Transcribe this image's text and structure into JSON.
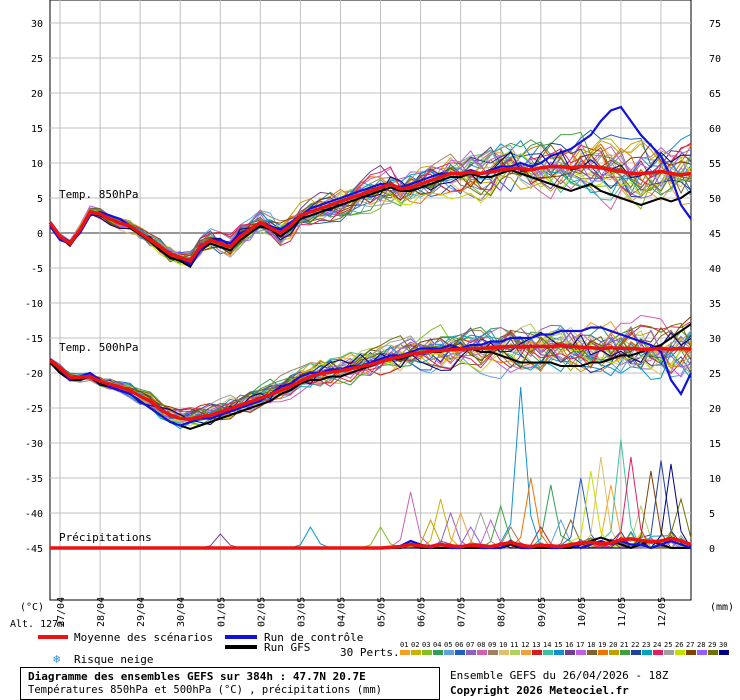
{
  "chart_data": {
    "type": "line",
    "left_axis_unit": "(°C)",
    "right_axis_unit": "(mm)",
    "altitude_label": "Alt. 127m",
    "left_ticks": [
      30,
      25,
      20,
      15,
      10,
      5,
      0,
      -5,
      -10,
      -15,
      -20,
      -25,
      -30,
      -35,
      -40,
      -45
    ],
    "right_ticks": [
      75,
      70,
      65,
      60,
      55,
      50,
      45,
      40,
      35,
      30,
      25,
      20,
      15,
      10,
      5,
      0
    ],
    "x_tick_labels": [
      "27/04",
      "28/04",
      "29/04",
      "30/04",
      "01/05",
      "02/05",
      "03/05",
      "04/05",
      "05/05",
      "06/05",
      "07/05",
      "08/05",
      "09/05",
      "10/05",
      "11/05",
      "12/05"
    ],
    "panel_labels": {
      "t850": "Temp. 850hPa",
      "t500": "Temp. 500hPa",
      "precip": "Précipitations"
    },
    "x_hours_start": 0,
    "x_hours_end": 384,
    "x_hours_step": 6,
    "t850": {
      "mean": [
        1.5,
        -0.5,
        -1.5,
        0.5,
        3,
        2.7,
        2,
        1.4,
        1,
        0,
        -1,
        -2,
        -3,
        -3.5,
        -4,
        -2,
        -1,
        -1.5,
        -2,
        -0.5,
        0.5,
        1.5,
        0.7,
        0,
        1,
        2.5,
        3,
        3.5,
        4,
        4.5,
        5,
        5.5,
        6,
        6.5,
        7,
        6.3,
        6.5,
        7,
        7.5,
        8,
        8.5,
        8.5,
        8.7,
        8.5,
        8.7,
        9,
        9.2,
        9.2,
        9,
        9.3,
        9.5,
        9.5,
        9.3,
        9.5,
        9.5,
        9.3,
        9,
        8.8,
        8.5,
        8.5,
        8.6,
        8.8,
        8.5,
        8.3,
        8.5
      ],
      "control": [
        1,
        -1,
        -1.5,
        0,
        2.5,
        3,
        2.5,
        2,
        1,
        0,
        -1,
        -2,
        -3,
        -3.5,
        -4.5,
        -2.5,
        -1,
        -1,
        -1.5,
        0,
        0.5,
        1.5,
        1,
        0.5,
        1.5,
        2.5,
        3.5,
        4,
        4.5,
        5,
        5.5,
        6,
        6.5,
        7,
        7,
        6.5,
        7,
        7.5,
        8,
        8.5,
        8.5,
        8.5,
        9,
        8.5,
        9,
        9.5,
        9.5,
        10,
        9.5,
        10,
        11,
        11.5,
        12,
        13,
        14,
        16,
        17.5,
        18,
        16,
        14,
        12.5,
        11,
        8,
        4,
        2
      ],
      "gfs": [
        1.2,
        -0.5,
        -1.8,
        0.3,
        2.8,
        2.5,
        2,
        1.5,
        0.8,
        -0.2,
        -1.2,
        -2.5,
        -3.5,
        -4,
        -4.8,
        -2.5,
        -1.5,
        -2,
        -2.5,
        -1,
        0,
        1,
        0.5,
        -0.5,
        0.5,
        2,
        2.5,
        3,
        3.5,
        4,
        4.5,
        5,
        5.5,
        6,
        6.5,
        6,
        6,
        6.5,
        7,
        7.5,
        8,
        8,
        8.5,
        8,
        8,
        8.5,
        9,
        8.5,
        8,
        7.5,
        7,
        6.5,
        6,
        6.5,
        7,
        6,
        5.5,
        5,
        4.5,
        4,
        4.5,
        5,
        4.5,
        5,
        6
      ]
    },
    "t500": {
      "mean": [
        -18.2,
        -19.3,
        -20.6,
        -20.6,
        -20.5,
        -21.2,
        -21.6,
        -22,
        -22.5,
        -23.3,
        -24,
        -25.2,
        -26,
        -26.5,
        -26.6,
        -26.3,
        -26,
        -25.6,
        -25.1,
        -24.6,
        -24.1,
        -23.6,
        -23.1,
        -22.5,
        -21.9,
        -21.2,
        -20.5,
        -20.1,
        -19.9,
        -19.7,
        -19.4,
        -19.1,
        -18.8,
        -18.4,
        -18,
        -17.7,
        -17.3,
        -17.1,
        -16.9,
        -16.8,
        -16.7,
        -16.6,
        -16.5,
        -16.5,
        -16.4,
        -16.3,
        -16.2,
        -16.3,
        -16.2,
        -16.2,
        -16.2,
        -16.1,
        -16.2,
        -16.3,
        -16.4,
        -16.5,
        -16.4,
        -16.5,
        -16.5,
        -16.6,
        -16.6,
        -16.5,
        -16.6,
        -16.5,
        -16.6
      ],
      "control": [
        -18,
        -19.5,
        -21,
        -20.5,
        -20,
        -21,
        -22,
        -22.5,
        -23,
        -24,
        -25,
        -26,
        -27,
        -27.5,
        -27,
        -26.5,
        -26.5,
        -26,
        -25.5,
        -25,
        -24.5,
        -24,
        -23,
        -22,
        -21.5,
        -20.5,
        -20,
        -20,
        -19.5,
        -19.5,
        -19,
        -19,
        -18.5,
        -18,
        -17.5,
        -17.5,
        -17,
        -16.5,
        -16.5,
        -16.5,
        -16,
        -16.5,
        -16,
        -16,
        -15.5,
        -15.5,
        -15,
        -15,
        -15,
        -14.5,
        -14.5,
        -14,
        -14,
        -14,
        -13.5,
        -13.5,
        -14,
        -14.5,
        -15,
        -15.5,
        -16,
        -17,
        -21,
        -23,
        -20
      ],
      "gfs": [
        -18.5,
        -20,
        -21,
        -21,
        -20.5,
        -21.5,
        -22,
        -22.5,
        -23,
        -24,
        -25,
        -26,
        -27,
        -27.5,
        -28,
        -27.5,
        -27,
        -26.5,
        -26,
        -25.5,
        -25,
        -24.5,
        -24,
        -23,
        -22.5,
        -21.5,
        -21,
        -21,
        -20.5,
        -20.5,
        -20,
        -19.5,
        -19,
        -18.5,
        -18,
        -18,
        -17.5,
        -17,
        -17,
        -17,
        -16.5,
        -16.5,
        -16.5,
        -17,
        -17,
        -17.5,
        -18,
        -18.5,
        -18.5,
        -18.5,
        -18.5,
        -19,
        -19,
        -19,
        -18.5,
        -18.5,
        -18,
        -17.5,
        -17.5,
        -17,
        -16.5,
        -16,
        -15,
        -14,
        -13
      ]
    },
    "precip_mean": [
      0,
      0,
      0,
      0,
      0,
      0,
      0,
      0,
      0,
      0,
      0,
      0,
      0,
      0,
      0,
      0,
      0,
      0,
      0,
      0,
      0,
      0,
      0,
      0,
      0,
      0,
      0,
      0,
      0,
      0,
      0,
      0,
      0,
      0,
      0.1,
      0.2,
      0.5,
      0.3,
      0.2,
      0.5,
      0.3,
      0.2,
      0.4,
      0.3,
      0.2,
      0.5,
      0.8,
      0.4,
      0.2,
      0.4,
      0.3,
      0.2,
      0.5,
      0.7,
      0.8,
      0.6,
      0.7,
      1.2,
      1.3,
      1.1,
      0.9,
      1,
      1.4,
      1,
      0.5
    ],
    "precip_control": [
      0,
      0,
      0,
      0,
      0,
      0,
      0,
      0,
      0,
      0,
      0,
      0,
      0,
      0,
      0,
      0,
      0,
      0,
      0,
      0,
      0,
      0,
      0,
      0,
      0,
      0,
      0,
      0,
      0,
      0,
      0,
      0,
      0,
      0,
      0,
      0.3,
      1,
      0.5,
      0,
      0.5,
      0,
      0,
      0.5,
      0,
      0,
      0,
      1,
      0,
      0,
      0.5,
      0,
      0,
      0.5,
      0,
      0.5,
      1,
      0.5,
      1,
      0.5,
      0.5,
      0,
      0.5,
      1,
      0.5,
      0
    ],
    "precip_gfs": [
      0,
      0,
      0,
      0,
      0,
      0,
      0,
      0,
      0,
      0,
      0,
      0,
      0,
      0,
      0,
      0,
      0,
      0,
      0,
      0,
      0,
      0,
      0,
      0,
      0,
      0,
      0,
      0,
      0,
      0,
      0,
      0,
      0,
      0,
      0,
      0,
      0.5,
      0,
      0,
      0,
      0,
      0,
      0,
      0,
      0,
      0,
      0.5,
      0,
      0,
      0,
      0,
      0,
      0,
      0.5,
      1,
      1.5,
      1,
      0.5,
      0,
      0.5,
      1,
      0.5,
      0,
      0,
      0
    ],
    "precip_spikes": [
      {
        "m": 9,
        "i": 55,
        "v": 13
      },
      {
        "m": 13,
        "i": 57,
        "v": 15.5
      },
      {
        "m": 21,
        "i": 61,
        "v": 12.5
      },
      {
        "m": 5,
        "i": 53,
        "v": 10
      },
      {
        "m": 14,
        "i": 47,
        "v": 23
      },
      {
        "m": 18,
        "i": 48,
        "v": 10
      },
      {
        "m": 3,
        "i": 50,
        "v": 9
      },
      {
        "m": 25,
        "i": 54,
        "v": 11
      },
      {
        "m": 7,
        "i": 36,
        "v": 8
      },
      {
        "m": 11,
        "i": 41,
        "v": 5
      },
      {
        "m": 23,
        "i": 58,
        "v": 13
      },
      {
        "m": 29,
        "i": 62,
        "v": 12
      },
      {
        "m": 16,
        "i": 44,
        "v": 4
      },
      {
        "m": 2,
        "i": 33,
        "v": 3
      },
      {
        "m": 19,
        "i": 38,
        "v": 4
      },
      {
        "m": 26,
        "i": 60,
        "v": 11
      },
      {
        "m": 4,
        "i": 51,
        "v": 4
      },
      {
        "m": 12,
        "i": 49,
        "v": 3
      },
      {
        "m": 0,
        "i": 56,
        "v": 9
      },
      {
        "m": 28,
        "i": 63,
        "v": 7
      },
      {
        "m": 22,
        "i": 26,
        "v": 3
      },
      {
        "m": 24,
        "i": 43,
        "v": 5
      },
      {
        "m": 8,
        "i": 46,
        "v": 3
      },
      {
        "m": 17,
        "i": 52,
        "v": 4
      },
      {
        "m": 10,
        "i": 59,
        "v": 6
      },
      {
        "m": 6,
        "i": 40,
        "v": 5
      },
      {
        "m": 15,
        "i": 17,
        "v": 2
      },
      {
        "m": 20,
        "i": 45,
        "v": 6
      },
      {
        "m": 1,
        "i": 39,
        "v": 7
      },
      {
        "m": 27,
        "i": 42,
        "v": 3
      }
    ],
    "member_colors": [
      "#f4a020",
      "#c8b400",
      "#80c020",
      "#30a050",
      "#60a0e0",
      "#2060c0",
      "#9060c0",
      "#d060b0",
      "#a08060",
      "#e0c070",
      "#b0d060",
      "#f0a040",
      "#d02020",
      "#40c0a0",
      "#1090d0",
      "#704090",
      "#c060e0",
      "#806030",
      "#f07000",
      "#c0a000",
      "#40a040",
      "#2040a0",
      "#00a0c0",
      "#e02060",
      "#a0a0a0",
      "#c0e000",
      "#804000",
      "#9060ff",
      "#707000",
      "#000080"
    ],
    "member_labels": [
      "01",
      "02",
      "03",
      "04",
      "05",
      "06",
      "07",
      "08",
      "09",
      "10",
      "11",
      "12",
      "13",
      "14",
      "15",
      "16",
      "17",
      "18",
      "19",
      "20",
      "21",
      "22",
      "23",
      "24",
      "25",
      "26",
      "27",
      "28",
      "29",
      "30"
    ],
    "perts_label": "30 Perts.",
    "colors": {
      "mean": "#ee1111",
      "control": "#1111dd",
      "gfs": "#000000",
      "grid": "#c0c0c0",
      "zero_line": "#777777"
    }
  },
  "legend": {
    "mean_label": "Moyenne des scénarios",
    "control_label": "Run de contrôle",
    "gfs_label": "Run GFS",
    "snow_label": "Risque neige"
  },
  "footer": {
    "title": "Diagramme des ensembles GEFS sur 384h : 47.7N 20.7E",
    "subtitle": "Températures 850hPa et 500hPa (°C) , précipitations (mm)",
    "run_info": "Ensemble GEFS du 26/04/2026 - 18Z",
    "copyright": "Copyright 2026 Meteociel.fr"
  }
}
